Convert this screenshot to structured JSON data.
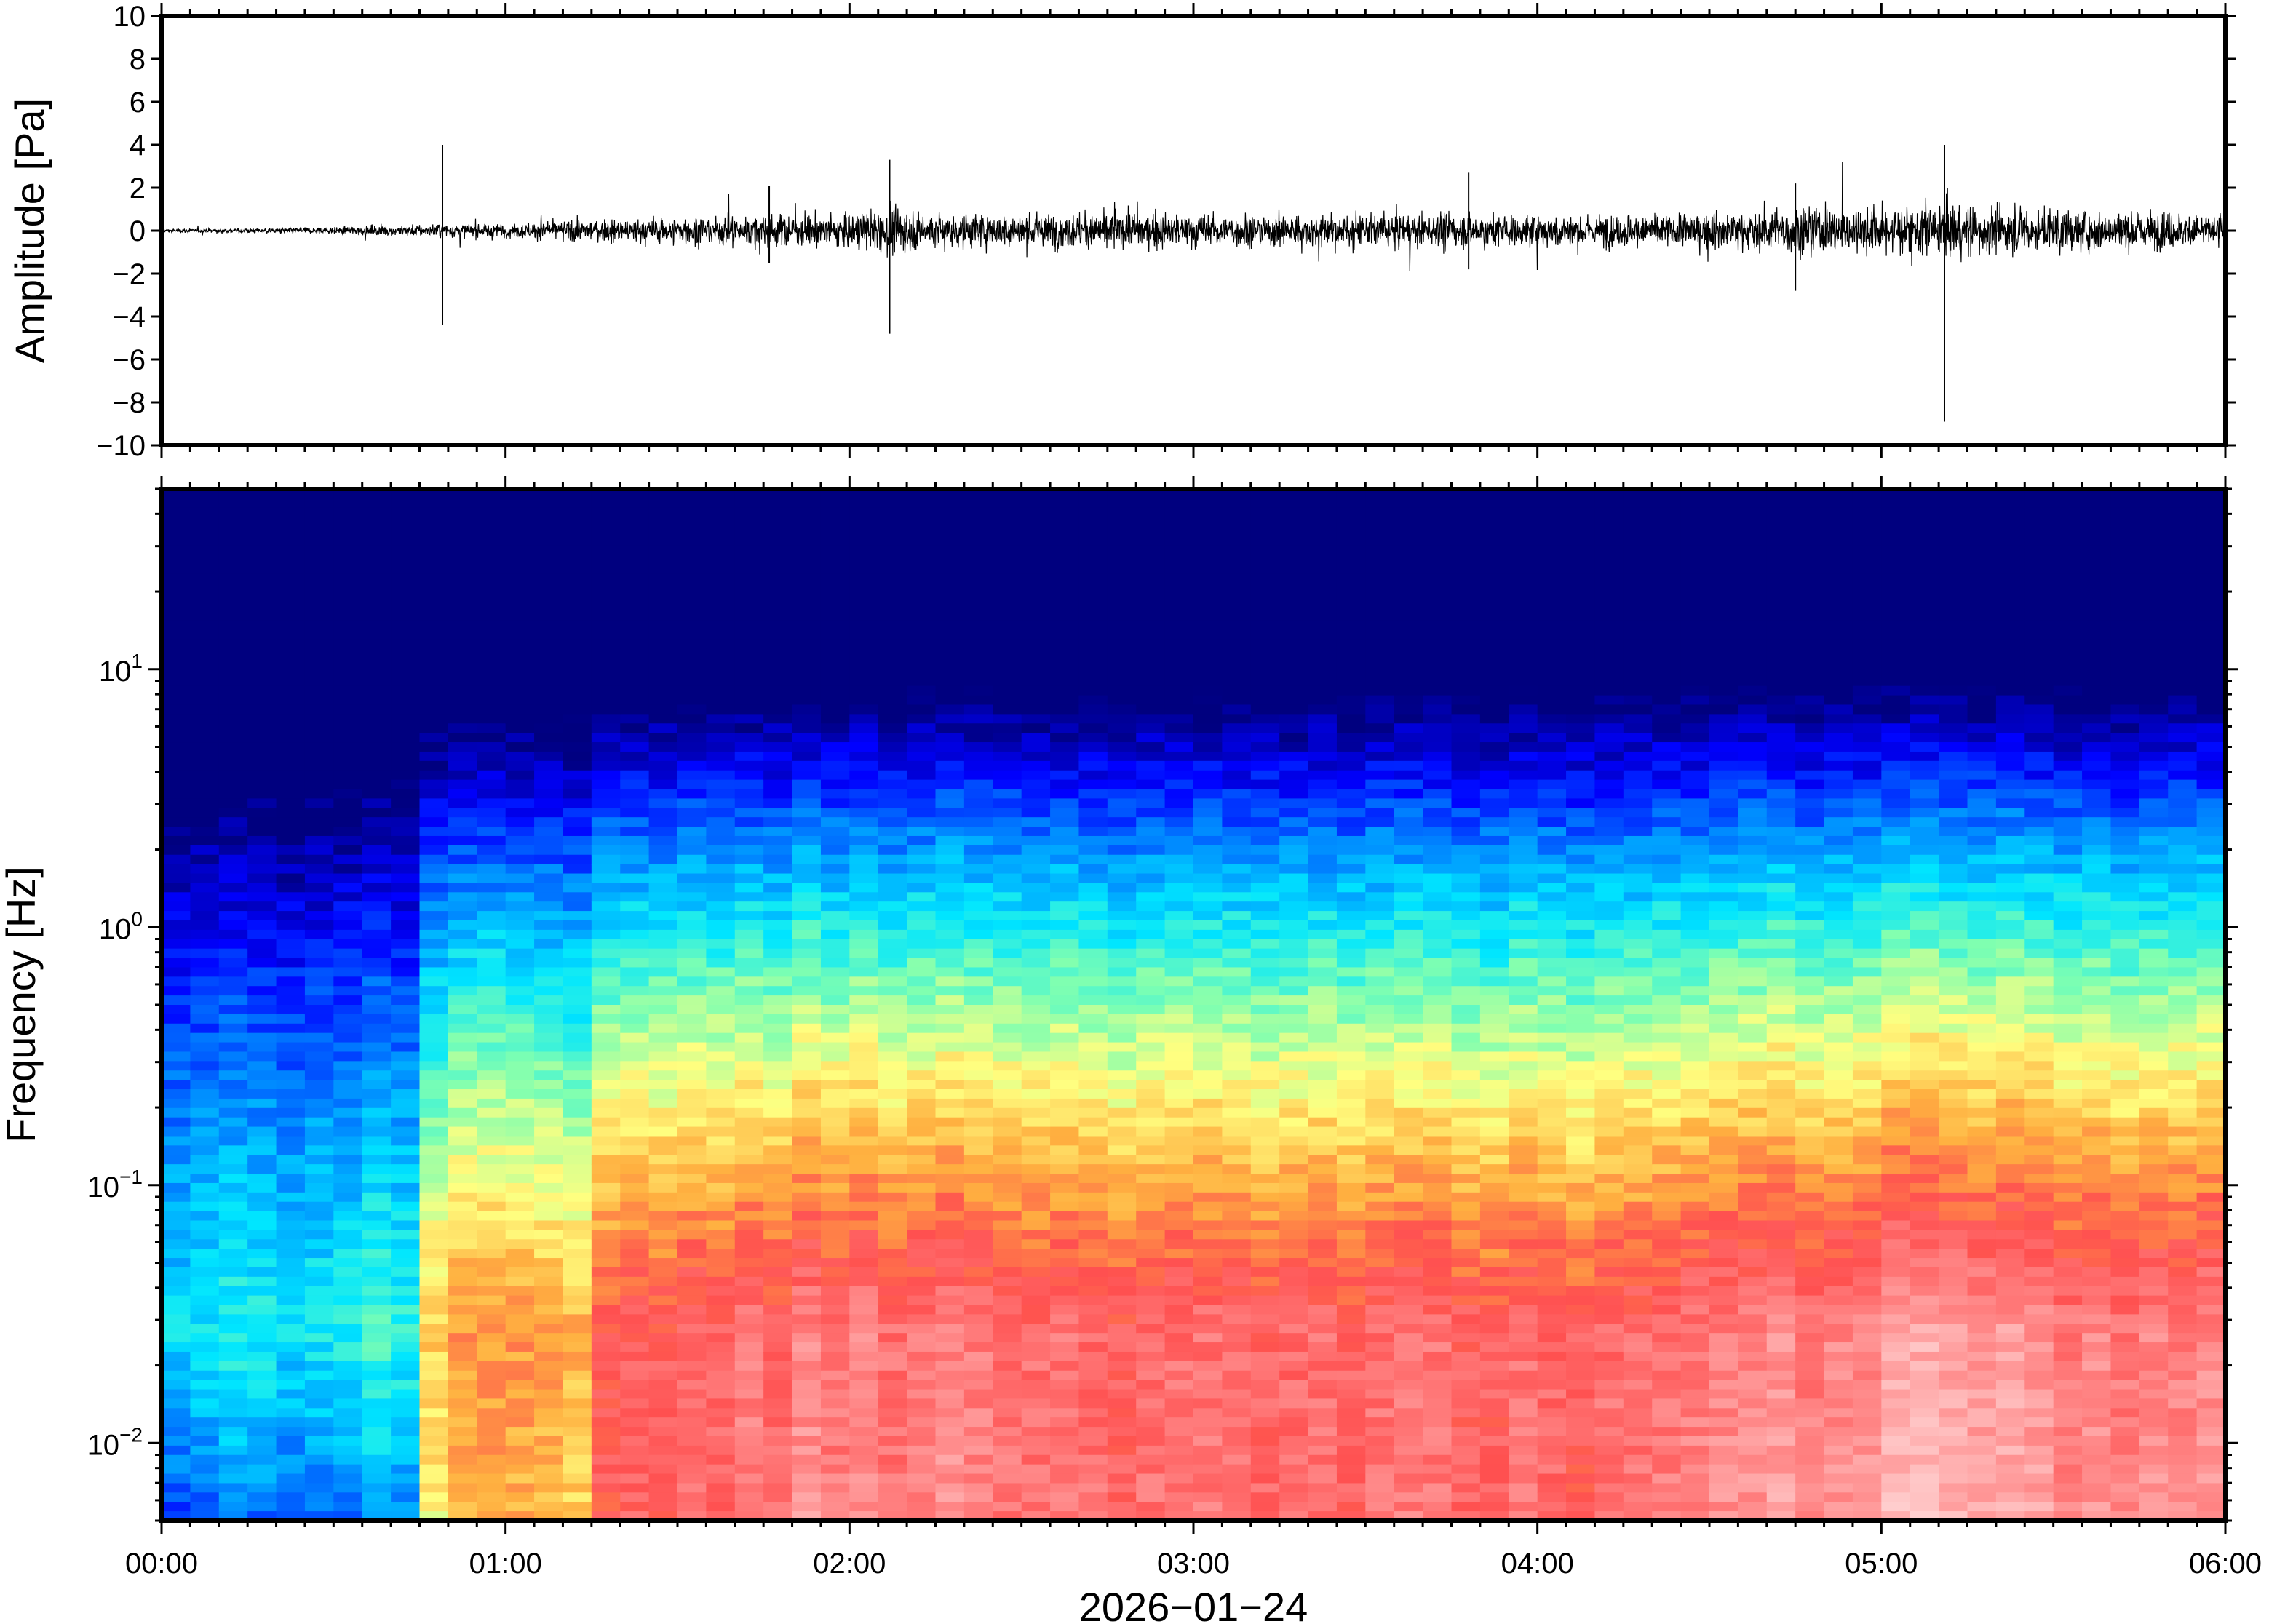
{
  "chart_data": [
    {
      "type": "line",
      "panel": "waveform",
      "ylabel": "Amplitude [Pa]",
      "ylim": [
        -10,
        10
      ],
      "yticks": [
        10,
        8,
        6,
        4,
        2,
        0,
        -2,
        -4,
        -6,
        -8,
        -10
      ],
      "ytick_labels": [
        "10",
        "8",
        "6",
        "4",
        "2",
        "0",
        "−2",
        "−4",
        "−6",
        "−8",
        "−10"
      ],
      "xlim": [
        "00:00",
        "06:00"
      ],
      "series": [
        {
          "color": "#000000",
          "envelope_x_hours": [
            0.0,
            0.5,
            0.8,
            1.0,
            1.2,
            1.5,
            1.75,
            2.0,
            2.15,
            2.3,
            2.6,
            3.0,
            3.5,
            3.8,
            4.0,
            4.5,
            4.7,
            5.0,
            5.18,
            5.5,
            6.0
          ],
          "envelope_pa": [
            0.1,
            0.2,
            0.4,
            0.4,
            0.6,
            0.8,
            0.9,
            1.0,
            1.3,
            1.0,
            1.0,
            1.0,
            0.9,
            1.0,
            0.9,
            1.0,
            1.3,
            1.4,
            1.6,
            1.2,
            1.0
          ],
          "spikes": [
            {
              "time": "00:49",
              "max": 4.0,
              "min": -4.4
            },
            {
              "time": "02:07",
              "max": 3.3,
              "min": -4.8
            },
            {
              "time": "03:48",
              "max": 2.7,
              "min": -1.8
            },
            {
              "time": "04:45",
              "max": 2.2,
              "min": -2.8
            },
            {
              "time": "05:11",
              "max": 4.0,
              "min": -8.9
            },
            {
              "time": "01:46",
              "max": 2.1,
              "min": -1.5
            }
          ]
        }
      ]
    },
    {
      "type": "heatmap",
      "panel": "spectrogram",
      "ylabel": "Frequency [Hz]",
      "yscale": "log",
      "ylim": [
        0.005,
        50
      ],
      "yticks": [
        10,
        1,
        0.1,
        0.01
      ],
      "ytick_labels": [
        {
          "base": "10",
          "exp": "1"
        },
        {
          "base": "10",
          "exp": "0"
        },
        {
          "base": "10",
          "exp": "−1"
        },
        {
          "base": "10",
          "exp": "−2"
        }
      ],
      "xlabel": "2026−01−24",
      "xlim": [
        "00:00",
        "06:00"
      ],
      "xtick_labels": [
        "00:00",
        "01:00",
        "02:00",
        "03:00",
        "04:00",
        "05:00",
        "06:00"
      ],
      "colormap": [
        "#00007f",
        "#0000ff",
        "#0080ff",
        "#00e6ff",
        "#80ffb0",
        "#ffff80",
        "#ffb040",
        "#ff5050",
        "#ff9090",
        "#ffd0d0"
      ],
      "description_levels": {
        "note_values_are_relative_power_0_to_1": true,
        "time_hours": [
          0.0,
          0.4,
          0.75,
          0.8,
          1.2,
          1.3,
          2.0,
          2.5,
          3.0,
          3.5,
          4.0,
          4.5,
          5.0,
          5.2,
          5.5,
          6.0
        ],
        "power_level": [
          0.0,
          0.05,
          0.1,
          0.55,
          0.5,
          0.7,
          0.8,
          0.75,
          0.72,
          0.75,
          0.72,
          0.78,
          0.85,
          0.9,
          0.8,
          0.78
        ]
      }
    }
  ]
}
